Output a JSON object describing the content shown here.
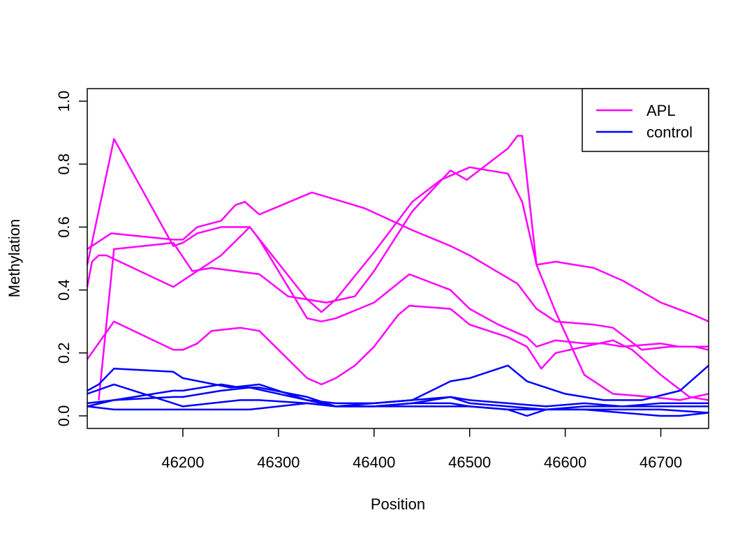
{
  "chart_data": {
    "type": "line",
    "xlabel": "Position",
    "ylabel": "Methylation",
    "xlim": [
      46100,
      46750
    ],
    "ylim": [
      -0.04,
      1.04
    ],
    "xticks": [
      46200,
      46300,
      46400,
      46500,
      46600,
      46700
    ],
    "xtick_labels": [
      "46200",
      "46300",
      "46400",
      "46500",
      "46600",
      "46700"
    ],
    "yticks": [
      0.0,
      0.2,
      0.4,
      0.6,
      0.8,
      1.0
    ],
    "ytick_labels": [
      "0.0",
      "0.2",
      "0.4",
      "0.6",
      "0.8",
      "1.0"
    ],
    "grid": false,
    "legend_position": "top-right",
    "legend": [
      {
        "name": "APL",
        "color": "#ff00ff"
      },
      {
        "name": "control",
        "color": "#0000ff"
      }
    ],
    "series": [
      {
        "group": "APL",
        "color": "#ff00ff",
        "points": [
          [
            46100,
            0.41
          ],
          [
            46105,
            0.49
          ],
          [
            46112,
            0.51
          ],
          [
            46120,
            0.51
          ],
          [
            46190,
            0.41
          ],
          [
            46220,
            0.47
          ],
          [
            46240,
            0.51
          ],
          [
            46270,
            0.6
          ],
          [
            46330,
            0.37
          ],
          [
            46345,
            0.33
          ],
          [
            46360,
            0.37
          ],
          [
            46400,
            0.52
          ],
          [
            46440,
            0.68
          ],
          [
            46470,
            0.75
          ],
          [
            46500,
            0.79
          ],
          [
            46540,
            0.77
          ],
          [
            46555,
            0.68
          ],
          [
            46570,
            0.48
          ],
          [
            46590,
            0.49
          ],
          [
            46630,
            0.47
          ],
          [
            46660,
            0.43
          ],
          [
            46700,
            0.36
          ],
          [
            46735,
            0.32
          ],
          [
            46750,
            0.3
          ]
        ]
      },
      {
        "group": "APL",
        "color": "#ff00ff",
        "points": [
          [
            46100,
            0.53
          ],
          [
            46125,
            0.58
          ],
          [
            46190,
            0.56
          ],
          [
            46200,
            0.56
          ],
          [
            46215,
            0.6
          ],
          [
            46240,
            0.62
          ],
          [
            46255,
            0.67
          ],
          [
            46265,
            0.68
          ],
          [
            46280,
            0.64
          ],
          [
            46335,
            0.71
          ],
          [
            46390,
            0.66
          ],
          [
            46440,
            0.59
          ],
          [
            46480,
            0.54
          ],
          [
            46500,
            0.51
          ],
          [
            46550,
            0.42
          ],
          [
            46570,
            0.34
          ],
          [
            46590,
            0.3
          ],
          [
            46630,
            0.29
          ],
          [
            46650,
            0.28
          ],
          [
            46680,
            0.21
          ],
          [
            46710,
            0.22
          ],
          [
            46735,
            0.22
          ],
          [
            46750,
            0.21
          ]
        ]
      },
      {
        "group": "APL",
        "color": "#ff00ff",
        "points": [
          [
            46100,
            0.48
          ],
          [
            46128,
            0.88
          ],
          [
            46190,
            0.54
          ],
          [
            46200,
            0.55
          ],
          [
            46215,
            0.58
          ],
          [
            46240,
            0.6
          ],
          [
            46270,
            0.6
          ],
          [
            46280,
            0.56
          ],
          [
            46330,
            0.31
          ],
          [
            46345,
            0.3
          ],
          [
            46360,
            0.31
          ],
          [
            46400,
            0.36
          ],
          [
            46437,
            0.45
          ],
          [
            46480,
            0.4
          ],
          [
            46500,
            0.34
          ],
          [
            46530,
            0.29
          ],
          [
            46560,
            0.25
          ],
          [
            46570,
            0.22
          ],
          [
            46590,
            0.24
          ],
          [
            46620,
            0.23
          ],
          [
            46640,
            0.23
          ],
          [
            46660,
            0.22
          ],
          [
            46700,
            0.23
          ],
          [
            46720,
            0.22
          ],
          [
            46750,
            0.22
          ]
        ]
      },
      {
        "group": "APL",
        "color": "#ff00ff",
        "points": [
          [
            46112,
            0.05
          ],
          [
            46128,
            0.53
          ],
          [
            46190,
            0.55
          ],
          [
            46210,
            0.46
          ],
          [
            46230,
            0.47
          ],
          [
            46280,
            0.45
          ],
          [
            46310,
            0.38
          ],
          [
            46350,
            0.36
          ],
          [
            46380,
            0.38
          ],
          [
            46400,
            0.46
          ],
          [
            46440,
            0.65
          ],
          [
            46480,
            0.78
          ],
          [
            46497,
            0.75
          ],
          [
            46540,
            0.85
          ],
          [
            46550,
            0.89
          ],
          [
            46555,
            0.89
          ],
          [
            46570,
            0.48
          ],
          [
            46590,
            0.33
          ],
          [
            46620,
            0.13
          ],
          [
            46650,
            0.07
          ],
          [
            46690,
            0.06
          ],
          [
            46720,
            0.05
          ],
          [
            46750,
            0.07
          ]
        ]
      },
      {
        "group": "APL",
        "color": "#ff00ff",
        "points": [
          [
            46100,
            0.18
          ],
          [
            46128,
            0.3
          ],
          [
            46190,
            0.21
          ],
          [
            46200,
            0.21
          ],
          [
            46215,
            0.23
          ],
          [
            46230,
            0.27
          ],
          [
            46260,
            0.28
          ],
          [
            46280,
            0.27
          ],
          [
            46330,
            0.12
          ],
          [
            46345,
            0.1
          ],
          [
            46360,
            0.12
          ],
          [
            46380,
            0.16
          ],
          [
            46400,
            0.22
          ],
          [
            46425,
            0.32
          ],
          [
            46437,
            0.35
          ],
          [
            46480,
            0.34
          ],
          [
            46500,
            0.29
          ],
          [
            46540,
            0.25
          ],
          [
            46560,
            0.22
          ],
          [
            46575,
            0.15
          ],
          [
            46590,
            0.2
          ],
          [
            46620,
            0.22
          ],
          [
            46650,
            0.24
          ],
          [
            46670,
            0.21
          ],
          [
            46700,
            0.13
          ],
          [
            46730,
            0.06
          ],
          [
            46750,
            0.05
          ]
        ]
      },
      {
        "group": "control",
        "color": "#0000ff",
        "points": [
          [
            46100,
            0.08
          ],
          [
            46112,
            0.1
          ],
          [
            46128,
            0.15
          ],
          [
            46190,
            0.14
          ],
          [
            46200,
            0.12
          ],
          [
            46250,
            0.09
          ],
          [
            46280,
            0.1
          ],
          [
            46330,
            0.05
          ],
          [
            46345,
            0.04
          ],
          [
            46360,
            0.03
          ],
          [
            46400,
            0.04
          ],
          [
            46440,
            0.05
          ],
          [
            46480,
            0.06
          ],
          [
            46500,
            0.05
          ],
          [
            46540,
            0.04
          ],
          [
            46580,
            0.03
          ],
          [
            46620,
            0.04
          ],
          [
            46660,
            0.03
          ],
          [
            46700,
            0.04
          ],
          [
            46750,
            0.04
          ]
        ]
      },
      {
        "group": "control",
        "color": "#0000ff",
        "points": [
          [
            46100,
            0.07
          ],
          [
            46128,
            0.1
          ],
          [
            46190,
            0.04
          ],
          [
            46200,
            0.03
          ],
          [
            46230,
            0.04
          ],
          [
            46260,
            0.05
          ],
          [
            46280,
            0.05
          ],
          [
            46330,
            0.04
          ],
          [
            46360,
            0.03
          ],
          [
            46400,
            0.03
          ],
          [
            46440,
            0.03
          ],
          [
            46480,
            0.03
          ],
          [
            46500,
            0.03
          ],
          [
            46540,
            0.02
          ],
          [
            46560,
            0.0
          ],
          [
            46580,
            0.02
          ],
          [
            46620,
            0.03
          ],
          [
            46660,
            0.03
          ],
          [
            46700,
            0.03
          ],
          [
            46750,
            0.03
          ]
        ]
      },
      {
        "group": "control",
        "color": "#0000ff",
        "points": [
          [
            46100,
            0.04
          ],
          [
            46128,
            0.05
          ],
          [
            46190,
            0.06
          ],
          [
            46200,
            0.06
          ],
          [
            46240,
            0.08
          ],
          [
            46270,
            0.09
          ],
          [
            46300,
            0.07
          ],
          [
            46330,
            0.05
          ],
          [
            46360,
            0.04
          ],
          [
            46400,
            0.04
          ],
          [
            46440,
            0.05
          ],
          [
            46480,
            0.11
          ],
          [
            46500,
            0.12
          ],
          [
            46540,
            0.16
          ],
          [
            46560,
            0.11
          ],
          [
            46600,
            0.07
          ],
          [
            46640,
            0.05
          ],
          [
            46680,
            0.05
          ],
          [
            46720,
            0.08
          ],
          [
            46750,
            0.16
          ]
        ]
      },
      {
        "group": "control",
        "color": "#0000ff",
        "points": [
          [
            46100,
            0.03
          ],
          [
            46128,
            0.05
          ],
          [
            46190,
            0.08
          ],
          [
            46200,
            0.08
          ],
          [
            46240,
            0.1
          ],
          [
            46260,
            0.09
          ],
          [
            46280,
            0.09
          ],
          [
            46330,
            0.06
          ],
          [
            46360,
            0.03
          ],
          [
            46400,
            0.03
          ],
          [
            46440,
            0.04
          ],
          [
            46480,
            0.06
          ],
          [
            46500,
            0.04
          ],
          [
            46540,
            0.03
          ],
          [
            46580,
            0.02
          ],
          [
            46620,
            0.02
          ],
          [
            46660,
            0.01
          ],
          [
            46700,
            0.0
          ],
          [
            46720,
            0.0
          ],
          [
            46750,
            0.01
          ]
        ]
      },
      {
        "group": "control",
        "color": "#0000ff",
        "points": [
          [
            46100,
            0.03
          ],
          [
            46128,
            0.02
          ],
          [
            46190,
            0.02
          ],
          [
            46200,
            0.02
          ],
          [
            46230,
            0.02
          ],
          [
            46250,
            0.02
          ],
          [
            46270,
            0.02
          ],
          [
            46300,
            0.03
          ],
          [
            46330,
            0.04
          ],
          [
            46360,
            0.03
          ],
          [
            46400,
            0.03
          ],
          [
            46440,
            0.04
          ],
          [
            46480,
            0.04
          ],
          [
            46500,
            0.03
          ],
          [
            46540,
            0.02
          ],
          [
            46580,
            0.02
          ],
          [
            46620,
            0.02
          ],
          [
            46660,
            0.02
          ],
          [
            46700,
            0.02
          ],
          [
            46750,
            0.01
          ]
        ]
      }
    ]
  }
}
